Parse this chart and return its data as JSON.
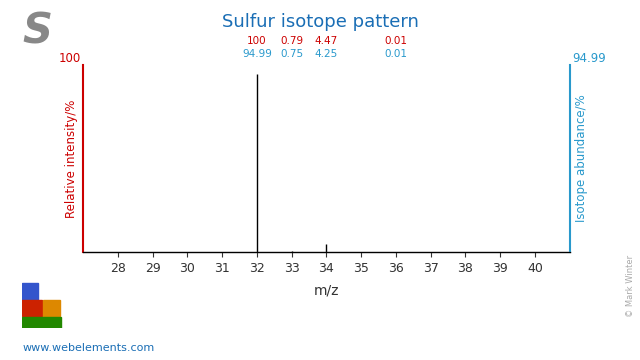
{
  "title": "Sulfur isotope pattern",
  "symbol": "S",
  "xlabel": "m/z",
  "ylabel_left": "Relative intensity/%",
  "ylabel_right": "Isotope abundance/%",
  "xlim": [
    27.0,
    41.0
  ],
  "ylim": [
    0,
    105
  ],
  "xticks": [
    28,
    29,
    30,
    31,
    32,
    33,
    34,
    35,
    36,
    37,
    38,
    39,
    40
  ],
  "peaks": [
    {
      "mz": 32,
      "rel_intensity": 100,
      "label_red": "100",
      "label_blue": "94.99"
    },
    {
      "mz": 33,
      "rel_intensity": 0.79,
      "label_red": "0.79",
      "label_blue": "0.75"
    },
    {
      "mz": 34,
      "rel_intensity": 4.47,
      "label_red": "4.47",
      "label_blue": "4.25"
    },
    {
      "mz": 36,
      "rel_intensity": 0.01,
      "label_red": "0.01",
      "label_blue": "0.01"
    }
  ],
  "right_axis_top_label": "94.99",
  "left_axis_top_label": "100",
  "title_color": "#1a6eb5",
  "symbol_color": "#888888",
  "left_axis_color": "#cc0000",
  "right_axis_color": "#2999cc",
  "peak_color": "#000000",
  "label_red_color": "#cc0000",
  "label_blue_color": "#2999cc",
  "watermark": "© Mark Winter",
  "website": "www.webelements.com",
  "background_color": "#ffffff",
  "periodic_table_colors": {
    "blue": "#3355cc",
    "red": "#cc2200",
    "orange": "#dd8800",
    "green": "#228800"
  }
}
